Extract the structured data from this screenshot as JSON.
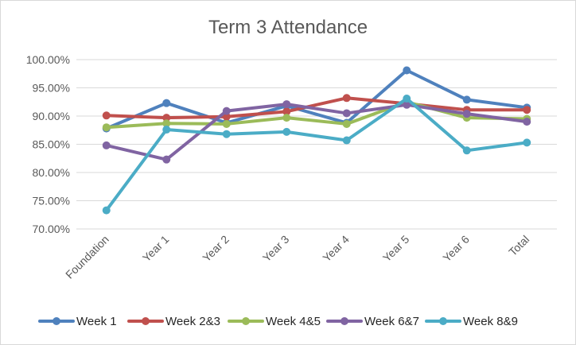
{
  "chart_data": {
    "type": "line",
    "title": "Term 3 Attendance",
    "xlabel": "",
    "ylabel": "",
    "categories": [
      "Foundation",
      "Year 1",
      "Year 2",
      "Year 3",
      "Year 4",
      "Year 5",
      "Year 6",
      "Total"
    ],
    "ylim": [
      70,
      100
    ],
    "yticks": [
      70,
      75,
      80,
      85,
      90,
      95,
      100
    ],
    "ytick_labels": [
      "70.00%",
      "75.00%",
      "80.00%",
      "85.00%",
      "90.00%",
      "95.00%",
      "100.00%"
    ],
    "grid": "horizontal",
    "legend_position": "bottom",
    "series": [
      {
        "name": "Week 1",
        "color": "#4f81bd",
        "values": [
          87.8,
          92.3,
          88.8,
          91.8,
          88.8,
          98.1,
          92.9,
          91.5
        ]
      },
      {
        "name": "Week 2&3",
        "color": "#c0504d",
        "values": [
          90.1,
          89.7,
          89.9,
          90.8,
          93.2,
          92.2,
          91.1,
          91.1
        ]
      },
      {
        "name": "Week 4&5",
        "color": "#9bbb59",
        "values": [
          88.0,
          88.7,
          88.6,
          89.7,
          88.6,
          92.5,
          89.7,
          89.5
        ]
      },
      {
        "name": "Week 6&7",
        "color": "#8064a2",
        "values": [
          84.8,
          82.3,
          90.9,
          92.1,
          90.5,
          92.0,
          90.4,
          89.0
        ]
      },
      {
        "name": "Week 8&9",
        "color": "#4bacc6",
        "values": [
          73.3,
          87.6,
          86.8,
          87.2,
          85.7,
          93.1,
          83.9,
          85.3
        ]
      }
    ]
  }
}
